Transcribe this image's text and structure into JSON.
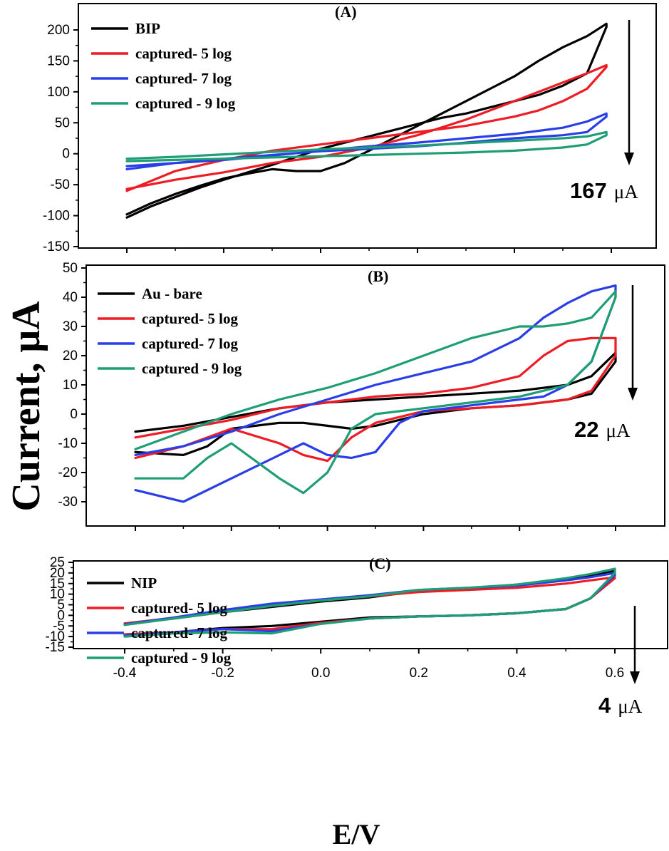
{
  "figure": {
    "ylabel": "Current, μA",
    "xlabel": "E/V",
    "x_tick_labels": [
      "-0.4",
      "-0.2",
      "0.0",
      "0.2",
      "0.4",
      "0.6"
    ],
    "colors": {
      "black": "#000000",
      "red": "#ee1c25",
      "blue": "#2a3ee8",
      "green": "#1f9e76"
    }
  },
  "chart_data": [
    {
      "type": "line",
      "panel": "(A)",
      "xlim": [
        -0.4,
        0.6
      ],
      "ylim": [
        -150,
        210
      ],
      "yticks": [
        -150,
        -100,
        -50,
        0,
        50,
        100,
        150,
        200
      ],
      "magnitude": {
        "value": "167",
        "unit": "μA"
      },
      "series": [
        {
          "name": "BIP",
          "color": "black",
          "x": [
            -0.4,
            -0.35,
            -0.3,
            -0.25,
            -0.2,
            -0.15,
            -0.1,
            -0.05,
            0.0,
            0.05,
            0.1,
            0.15,
            0.2,
            0.25,
            0.3,
            0.35,
            0.4,
            0.45,
            0.5,
            0.55,
            0.59,
            0.59,
            0.55,
            0.5,
            0.45,
            0.4,
            0.35,
            0.3,
            0.25,
            0.2,
            0.15,
            0.1,
            0.05,
            0.0,
            -0.05,
            -0.1,
            -0.15,
            -0.2,
            -0.25,
            -0.3,
            -0.35,
            -0.4
          ],
          "y": [
            -98,
            -80,
            -65,
            -52,
            -40,
            -32,
            -25,
            -28,
            -28,
            -15,
            5,
            25,
            45,
            65,
            85,
            105,
            125,
            150,
            172,
            190,
            210,
            205,
            130,
            110,
            95,
            85,
            75,
            65,
            58,
            48,
            38,
            28,
            18,
            8,
            -5,
            -18,
            -30,
            -42,
            -55,
            -70,
            -85,
            -103
          ]
        },
        {
          "name": "captured- 5 log",
          "color": "red",
          "x": [
            -0.4,
            -0.3,
            -0.2,
            -0.1,
            0.0,
            0.1,
            0.2,
            0.3,
            0.4,
            0.45,
            0.5,
            0.55,
            0.59,
            0.59,
            0.55,
            0.5,
            0.45,
            0.4,
            0.3,
            0.2,
            0.1,
            0.0,
            -0.1,
            -0.2,
            -0.3,
            -0.4
          ],
          "y": [
            -57,
            -42,
            -30,
            -15,
            -5,
            10,
            30,
            55,
            85,
            100,
            115,
            130,
            143,
            140,
            105,
            85,
            70,
            60,
            45,
            35,
            25,
            15,
            5,
            -10,
            -28,
            -60
          ]
        },
        {
          "name": "captured- 7 log",
          "color": "blue",
          "x": [
            -0.4,
            -0.3,
            -0.2,
            -0.1,
            0.0,
            0.1,
            0.2,
            0.3,
            0.4,
            0.5,
            0.55,
            0.59,
            0.59,
            0.55,
            0.5,
            0.4,
            0.3,
            0.2,
            0.1,
            0.0,
            -0.1,
            -0.2,
            -0.3,
            -0.4
          ],
          "y": [
            -20,
            -15,
            -10,
            -3,
            5,
            12,
            18,
            25,
            32,
            42,
            52,
            65,
            60,
            35,
            30,
            25,
            18,
            12,
            8,
            4,
            -2,
            -8,
            -15,
            -25
          ]
        },
        {
          "name": "captured - 9 log",
          "color": "green",
          "x": [
            -0.4,
            -0.3,
            -0.2,
            -0.1,
            0.0,
            0.1,
            0.2,
            0.3,
            0.4,
            0.5,
            0.55,
            0.59,
            0.59,
            0.55,
            0.5,
            0.4,
            0.3,
            0.2,
            0.1,
            0.0,
            -0.1,
            -0.2,
            -0.3,
            -0.4
          ],
          "y": [
            -8,
            -5,
            -1,
            3,
            7,
            10,
            13,
            17,
            21,
            25,
            28,
            35,
            30,
            15,
            10,
            5,
            2,
            0,
            -2,
            -4,
            -6,
            -8,
            -10,
            -12
          ]
        }
      ]
    },
    {
      "type": "line",
      "panel": "(B)",
      "xlim": [
        -0.4,
        0.6
      ],
      "ylim": [
        -38,
        50
      ],
      "yticks": [
        -30,
        -20,
        -10,
        0,
        10,
        20,
        30,
        40,
        50
      ],
      "magnitude": {
        "value": "22",
        "unit": "μA"
      },
      "series": [
        {
          "name": "Au - bare",
          "color": "black",
          "x": [
            -0.4,
            -0.3,
            -0.2,
            -0.1,
            0.0,
            0.1,
            0.2,
            0.3,
            0.4,
            0.5,
            0.55,
            0.6,
            0.6,
            0.55,
            0.5,
            0.4,
            0.3,
            0.2,
            0.1,
            0.05,
            0.0,
            -0.05,
            -0.1,
            -0.2,
            -0.25,
            -0.3,
            -0.4
          ],
          "y": [
            -6,
            -4,
            -1,
            2,
            4,
            5,
            6,
            7,
            8,
            10,
            13,
            21,
            18,
            7,
            5,
            3,
            2,
            0,
            -4,
            -5,
            -4,
            -3,
            -3,
            -5,
            -11,
            -14,
            -13
          ]
        },
        {
          "name": "captured- 5 log",
          "color": "red",
          "x": [
            -0.4,
            -0.3,
            -0.2,
            -0.1,
            0.0,
            0.1,
            0.2,
            0.3,
            0.4,
            0.45,
            0.5,
            0.55,
            0.6,
            0.6,
            0.55,
            0.5,
            0.4,
            0.3,
            0.2,
            0.1,
            0.05,
            0.0,
            -0.05,
            -0.1,
            -0.2,
            -0.3,
            -0.4
          ],
          "y": [
            -8,
            -5,
            -2,
            2,
            4,
            6,
            7,
            9,
            13,
            20,
            25,
            26,
            26,
            20,
            8,
            5,
            3,
            2,
            1,
            -3,
            -8,
            -16,
            -14,
            -10,
            -5,
            -11,
            -15
          ]
        },
        {
          "name": "captured- 7 log",
          "color": "blue",
          "x": [
            -0.4,
            -0.3,
            -0.2,
            -0.1,
            0.0,
            0.1,
            0.2,
            0.3,
            0.4,
            0.45,
            0.5,
            0.55,
            0.6,
            0.6,
            0.55,
            0.5,
            0.45,
            0.4,
            0.3,
            0.2,
            0.15,
            0.1,
            0.05,
            0.0,
            -0.05,
            -0.1,
            -0.2,
            -0.3,
            -0.4
          ],
          "y": [
            -14,
            -11,
            -6,
            0,
            5,
            10,
            14,
            18,
            26,
            33,
            38,
            42,
            44,
            40,
            18,
            10,
            6,
            5,
            3,
            1,
            -3,
            -13,
            -15,
            -14,
            -10,
            -14,
            -22,
            -30,
            -26
          ]
        },
        {
          "name": "captured - 9 log",
          "color": "green",
          "x": [
            -0.4,
            -0.35,
            -0.3,
            -0.2,
            -0.1,
            0.0,
            0.1,
            0.2,
            0.3,
            0.4,
            0.45,
            0.5,
            0.55,
            0.6,
            0.6,
            0.55,
            0.5,
            0.4,
            0.3,
            0.2,
            0.1,
            0.05,
            0.0,
            -0.05,
            -0.1,
            -0.2,
            -0.25,
            -0.3,
            -0.4
          ],
          "y": [
            -12,
            -9,
            -6,
            0,
            5,
            9,
            14,
            20,
            26,
            30,
            30,
            31,
            33,
            42,
            40,
            18,
            10,
            6,
            4,
            2,
            0,
            -5,
            -20,
            -27,
            -22,
            -10,
            -15,
            -22,
            -22
          ]
        }
      ]
    },
    {
      "type": "line",
      "panel": "(C)",
      "xlim": [
        -0.4,
        0.6
      ],
      "ylim": [
        -15,
        25
      ],
      "yticks": [
        -15,
        -10,
        -5,
        0,
        5,
        10,
        15,
        20,
        25
      ],
      "magnitude": {
        "value": "4",
        "unit": "μA"
      },
      "series": [
        {
          "name": "NIP",
          "color": "black",
          "x": [
            -0.4,
            -0.3,
            -0.2,
            -0.1,
            0.0,
            0.1,
            0.2,
            0.3,
            0.4,
            0.5,
            0.55,
            0.6,
            0.6,
            0.55,
            0.5,
            0.4,
            0.3,
            0.2,
            0.1,
            0.0,
            -0.1,
            -0.2,
            -0.3,
            -0.4
          ],
          "y": [
            -4,
            -1.5,
            1.5,
            4,
            6.5,
            8.5,
            11.5,
            12.5,
            14.5,
            17,
            19,
            21,
            19,
            8,
            3,
            1,
            0,
            -0.5,
            -1,
            -3,
            -5,
            -6,
            -8,
            -9
          ]
        },
        {
          "name": "captured- 5 log",
          "color": "red",
          "x": [
            -0.4,
            -0.3,
            -0.2,
            -0.1,
            0.0,
            0.1,
            0.2,
            0.3,
            0.4,
            0.5,
            0.55,
            0.6,
            0.6,
            0.55,
            0.5,
            0.4,
            0.3,
            0.2,
            0.1,
            0.0,
            -0.1,
            -0.2,
            -0.3,
            -0.4
          ],
          "y": [
            -3.8,
            -1.2,
            2,
            4.5,
            7,
            9,
            11,
            12,
            13,
            15,
            16.5,
            18,
            17.5,
            8,
            3,
            1,
            0,
            -0.5,
            -1.5,
            -3.5,
            -6.5,
            -6.5,
            -8,
            -9
          ]
        },
        {
          "name": "captured- 7 log",
          "color": "blue",
          "x": [
            -0.4,
            -0.3,
            -0.2,
            -0.1,
            0.0,
            0.1,
            0.2,
            0.3,
            0.4,
            0.5,
            0.55,
            0.6,
            0.6,
            0.55,
            0.5,
            0.4,
            0.3,
            0.2,
            0.1,
            0.0,
            -0.1,
            -0.2,
            -0.3,
            -0.4
          ],
          "y": [
            -4.2,
            -1,
            2.5,
            5.5,
            7.5,
            9.5,
            12,
            13,
            14,
            16.5,
            18,
            20,
            19,
            8,
            3,
            1,
            0,
            -0.5,
            -1.5,
            -4,
            -7.5,
            -6.5,
            -8,
            -9.5
          ]
        },
        {
          "name": "captured - 9 log",
          "color": "green",
          "x": [
            -0.4,
            -0.3,
            -0.2,
            -0.1,
            0.0,
            0.1,
            0.2,
            0.3,
            0.4,
            0.5,
            0.55,
            0.6,
            0.6,
            0.55,
            0.5,
            0.4,
            0.3,
            0.2,
            0.1,
            0.0,
            -0.1,
            -0.2,
            -0.3,
            -0.4
          ],
          "y": [
            -4.5,
            -1.5,
            1.5,
            4.5,
            7,
            9,
            12,
            13,
            14.5,
            17.5,
            19.5,
            22,
            20,
            8,
            3,
            1,
            0,
            -0.5,
            -1.5,
            -4,
            -8.5,
            -8,
            -8.5,
            -10
          ]
        }
      ]
    }
  ]
}
